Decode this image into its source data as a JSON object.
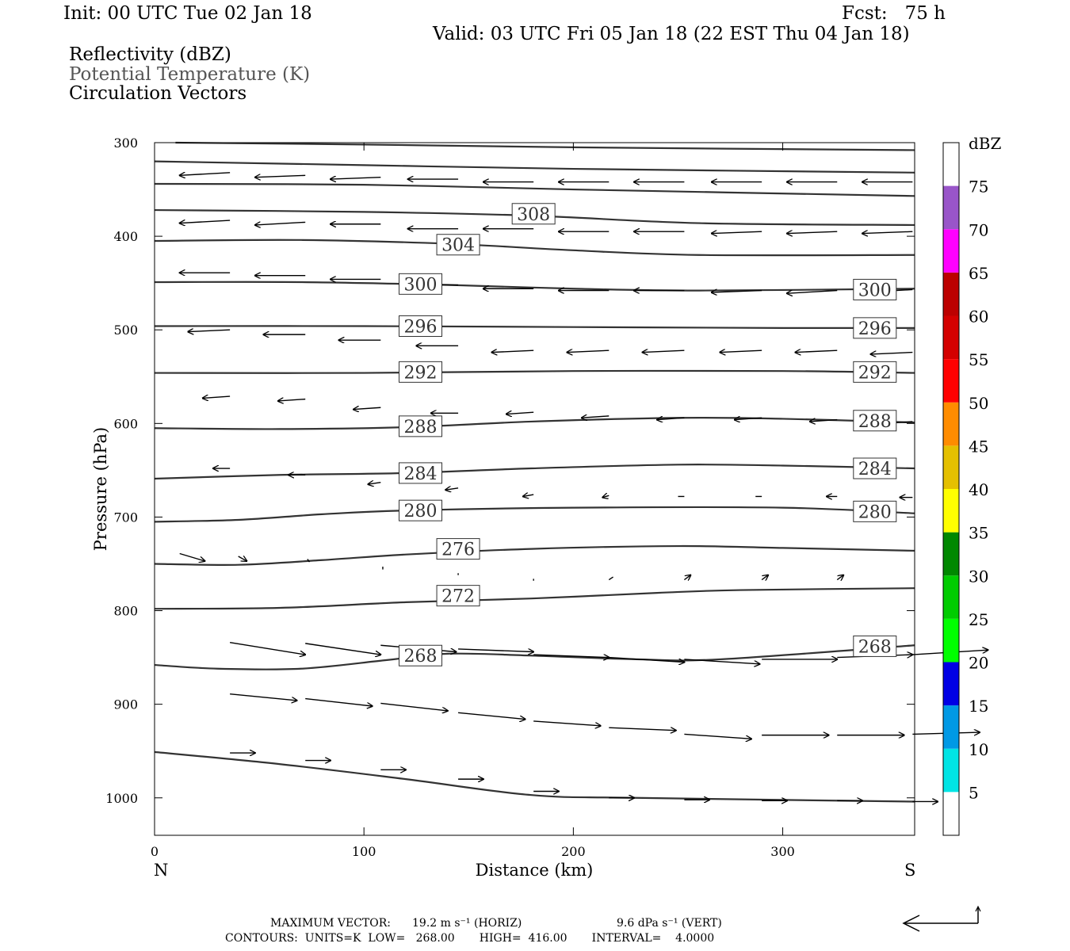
{
  "header": {
    "init": "Init: 00 UTC Tue 02 Jan 18",
    "fcst": "Fcst:   75 h",
    "valid": "Valid: 03 UTC Fri 05 Jan 18 (22 EST Thu 04 Jan 18)",
    "fields": [
      "Reflectivity (dBZ)",
      "Potential Temperature (K)",
      "Circulation Vectors"
    ]
  },
  "chart_data": {
    "type": "cross-section",
    "xlabel": "Distance (km)",
    "ylabel": "Pressure (hPa)",
    "x_ticks": [
      "0",
      "100",
      "200",
      "300"
    ],
    "x_tick_values": [
      0,
      100,
      200,
      300
    ],
    "y_ticks": [
      "300",
      "400",
      "500",
      "600",
      "700",
      "800",
      "900",
      "1000"
    ],
    "y_tick_values": [
      300,
      400,
      500,
      600,
      700,
      800,
      900,
      1000
    ],
    "xlim": [
      0,
      363
    ],
    "ylim": [
      1040,
      300
    ],
    "left_end_label": "N",
    "right_end_label": "S",
    "colorbar": {
      "title": "dBZ",
      "labels": [
        "5",
        "10",
        "15",
        "20",
        "25",
        "30",
        "35",
        "40",
        "45",
        "50",
        "55",
        "60",
        "65",
        "70",
        "75"
      ],
      "colors": [
        "#00e5e5",
        "#0099e5",
        "#0000e5",
        "#00ff00",
        "#00cc00",
        "#008800",
        "#ffff00",
        "#e5c000",
        "#ff8c00",
        "#ff0000",
        "#d40000",
        "#bc0000",
        "#ff00ff",
        "#9955c9"
      ]
    },
    "contours": [
      {
        "label": "",
        "points": [
          [
            10,
            300
          ],
          [
            100,
            302
          ],
          [
            200,
            305
          ],
          [
            363,
            308
          ]
        ]
      },
      {
        "label": "",
        "points": [
          [
            0,
            320
          ],
          [
            100,
            324
          ],
          [
            200,
            328
          ],
          [
            363,
            332
          ]
        ]
      },
      {
        "label": "",
        "points": [
          [
            0,
            344
          ],
          [
            100,
            345
          ],
          [
            200,
            350
          ],
          [
            363,
            357
          ]
        ]
      },
      {
        "label": "308",
        "points": [
          [
            0,
            372
          ],
          [
            100,
            374
          ],
          [
            180,
            378
          ],
          [
            260,
            386
          ],
          [
            363,
            388
          ]
        ]
      },
      {
        "label": "304",
        "points": [
          [
            0,
            405
          ],
          [
            70,
            404
          ],
          [
            140,
            408
          ],
          [
            200,
            415
          ],
          [
            260,
            420
          ],
          [
            363,
            420
          ]
        ]
      },
      {
        "label": "300",
        "points": [
          [
            0,
            449
          ],
          [
            70,
            449
          ],
          [
            140,
            452
          ],
          [
            200,
            456
          ],
          [
            260,
            458
          ],
          [
            363,
            456
          ]
        ]
      },
      {
        "label": "296",
        "points": [
          [
            0,
            496
          ],
          [
            100,
            496
          ],
          [
            200,
            497
          ],
          [
            300,
            498
          ],
          [
            363,
            498
          ]
        ]
      },
      {
        "label": "292",
        "points": [
          [
            0,
            546
          ],
          [
            100,
            546
          ],
          [
            200,
            544
          ],
          [
            300,
            544
          ],
          [
            363,
            546
          ]
        ]
      },
      {
        "label": "288",
        "points": [
          [
            0,
            605
          ],
          [
            60,
            606
          ],
          [
            120,
            604
          ],
          [
            180,
            598
          ],
          [
            250,
            594
          ],
          [
            300,
            595
          ],
          [
            363,
            599
          ]
        ]
      },
      {
        "label": "284",
        "points": [
          [
            0,
            659
          ],
          [
            60,
            655
          ],
          [
            120,
            653
          ],
          [
            180,
            648
          ],
          [
            250,
            644
          ],
          [
            300,
            645
          ],
          [
            363,
            648
          ]
        ]
      },
      {
        "label": "280",
        "points": [
          [
            0,
            705
          ],
          [
            40,
            703
          ],
          [
            80,
            697
          ],
          [
            120,
            693
          ],
          [
            200,
            690
          ],
          [
            300,
            690
          ],
          [
            363,
            696
          ]
        ]
      },
      {
        "label": "276",
        "points": [
          [
            0,
            750
          ],
          [
            40,
            751
          ],
          [
            80,
            746
          ],
          [
            120,
            740
          ],
          [
            180,
            734
          ],
          [
            250,
            731
          ],
          [
            300,
            733
          ],
          [
            363,
            736
          ]
        ]
      },
      {
        "label": "272",
        "points": [
          [
            0,
            798
          ],
          [
            60,
            797
          ],
          [
            120,
            791
          ],
          [
            180,
            787
          ],
          [
            240,
            781
          ],
          [
            280,
            778
          ],
          [
            363,
            776
          ]
        ]
      },
      {
        "label": "268",
        "points": [
          [
            0,
            858
          ],
          [
            30,
            862
          ],
          [
            70,
            862
          ],
          [
            110,
            853
          ],
          [
            140,
            846
          ],
          [
            180,
            848
          ],
          [
            230,
            852
          ],
          [
            270,
            852
          ],
          [
            363,
            837
          ]
        ]
      },
      {
        "label": "",
        "points": [
          [
            0,
            951
          ],
          [
            60,
            964
          ],
          [
            120,
            980
          ],
          [
            180,
            997
          ],
          [
            230,
            1000
          ],
          [
            363,
            1004
          ]
        ]
      }
    ],
    "contour_labels": [
      {
        "text": "308",
        "x": 181,
        "p": 376
      },
      {
        "text": "304",
        "x": 145,
        "p": 409
      },
      {
        "text": "300",
        "x": 127,
        "p": 451
      },
      {
        "text": "300",
        "x": 344,
        "p": 457
      },
      {
        "text": "296",
        "x": 127,
        "p": 496
      },
      {
        "text": "296",
        "x": 344,
        "p": 498
      },
      {
        "text": "292",
        "x": 127,
        "p": 545
      },
      {
        "text": "292",
        "x": 344,
        "p": 545
      },
      {
        "text": "288",
        "x": 127,
        "p": 603
      },
      {
        "text": "288",
        "x": 344,
        "p": 597
      },
      {
        "text": "284",
        "x": 127,
        "p": 653
      },
      {
        "text": "284",
        "x": 344,
        "p": 648
      },
      {
        "text": "280",
        "x": 127,
        "p": 693
      },
      {
        "text": "280",
        "x": 344,
        "p": 694
      },
      {
        "text": "276",
        "x": 145,
        "p": 734
      },
      {
        "text": "272",
        "x": 145,
        "p": 784
      },
      {
        "text": "268",
        "x": 127,
        "p": 848
      },
      {
        "text": "268",
        "x": 344,
        "p": 838
      }
    ],
    "vectors": [
      {
        "x": 36,
        "p": 332,
        "dx": -24,
        "dp": 3
      },
      {
        "x": 72,
        "p": 335,
        "dx": -24,
        "dp": 2
      },
      {
        "x": 108,
        "p": 337,
        "dx": -24,
        "dp": 2
      },
      {
        "x": 145,
        "p": 339,
        "dx": -24,
        "dp": 0
      },
      {
        "x": 181,
        "p": 342,
        "dx": -24,
        "dp": 0
      },
      {
        "x": 217,
        "p": 342,
        "dx": -24,
        "dp": 0
      },
      {
        "x": 253,
        "p": 342,
        "dx": -24,
        "dp": 0
      },
      {
        "x": 290,
        "p": 342,
        "dx": -24,
        "dp": 0
      },
      {
        "x": 326,
        "p": 342,
        "dx": -24,
        "dp": 0
      },
      {
        "x": 362,
        "p": 342,
        "dx": -24,
        "dp": 0
      },
      {
        "x": 36,
        "p": 383,
        "dx": -24,
        "dp": 3
      },
      {
        "x": 72,
        "p": 385,
        "dx": -24,
        "dp": 3
      },
      {
        "x": 108,
        "p": 387,
        "dx": -24,
        "dp": 0
      },
      {
        "x": 145,
        "p": 392,
        "dx": -24,
        "dp": 0
      },
      {
        "x": 181,
        "p": 392,
        "dx": -24,
        "dp": 0
      },
      {
        "x": 217,
        "p": 395,
        "dx": -24,
        "dp": 0
      },
      {
        "x": 253,
        "p": 395,
        "dx": -24,
        "dp": 0
      },
      {
        "x": 290,
        "p": 395,
        "dx": -24,
        "dp": 2
      },
      {
        "x": 326,
        "p": 395,
        "dx": -24,
        "dp": 2
      },
      {
        "x": 362,
        "p": 395,
        "dx": -24,
        "dp": 2
      },
      {
        "x": 36,
        "p": 439,
        "dx": -24,
        "dp": 0
      },
      {
        "x": 72,
        "p": 442,
        "dx": -24,
        "dp": 0
      },
      {
        "x": 108,
        "p": 446,
        "dx": -24,
        "dp": 0
      },
      {
        "x": 145,
        "p": 452,
        "dx": -24,
        "dp": 0
      },
      {
        "x": 181,
        "p": 456,
        "dx": -24,
        "dp": 0
      },
      {
        "x": 217,
        "p": 458,
        "dx": -24,
        "dp": 0
      },
      {
        "x": 253,
        "p": 458,
        "dx": -24,
        "dp": 0
      },
      {
        "x": 290,
        "p": 458,
        "dx": -24,
        "dp": 2
      },
      {
        "x": 326,
        "p": 458,
        "dx": -24,
        "dp": 3
      },
      {
        "x": 362,
        "p": 457,
        "dx": -24,
        "dp": 3
      },
      {
        "x": 36,
        "p": 500,
        "dx": -20,
        "dp": 2
      },
      {
        "x": 72,
        "p": 505,
        "dx": -20,
        "dp": 0
      },
      {
        "x": 108,
        "p": 511,
        "dx": -20,
        "dp": 0
      },
      {
        "x": 145,
        "p": 517,
        "dx": -20,
        "dp": 0
      },
      {
        "x": 181,
        "p": 522,
        "dx": -20,
        "dp": 2
      },
      {
        "x": 217,
        "p": 522,
        "dx": -20,
        "dp": 2
      },
      {
        "x": 253,
        "p": 522,
        "dx": -20,
        "dp": 2
      },
      {
        "x": 290,
        "p": 522,
        "dx": -20,
        "dp": 2
      },
      {
        "x": 326,
        "p": 522,
        "dx": -20,
        "dp": 2
      },
      {
        "x": 362,
        "p": 524,
        "dx": -20,
        "dp": 2
      },
      {
        "x": 36,
        "p": 571,
        "dx": -13,
        "dp": 2
      },
      {
        "x": 72,
        "p": 574,
        "dx": -13,
        "dp": 2
      },
      {
        "x": 108,
        "p": 583,
        "dx": -13,
        "dp": 2
      },
      {
        "x": 145,
        "p": 589,
        "dx": -13,
        "dp": 0
      },
      {
        "x": 181,
        "p": 588,
        "dx": -13,
        "dp": 2
      },
      {
        "x": 217,
        "p": 592,
        "dx": -13,
        "dp": 2
      },
      {
        "x": 253,
        "p": 594,
        "dx": -13,
        "dp": 2
      },
      {
        "x": 290,
        "p": 594,
        "dx": -13,
        "dp": 2
      },
      {
        "x": 326,
        "p": 596,
        "dx": -13,
        "dp": 2
      },
      {
        "x": 362,
        "p": 598,
        "dx": -13,
        "dp": 2
      },
      {
        "x": 36,
        "p": 648,
        "dx": -8,
        "dp": 0
      },
      {
        "x": 72,
        "p": 655,
        "dx": -8,
        "dp": 0
      },
      {
        "x": 108,
        "p": 663,
        "dx": -6,
        "dp": 2
      },
      {
        "x": 145,
        "p": 669,
        "dx": -6,
        "dp": 2
      },
      {
        "x": 181,
        "p": 676,
        "dx": -5,
        "dp": 2
      },
      {
        "x": 217,
        "p": 677,
        "dx": -3,
        "dp": 2
      },
      {
        "x": 253,
        "p": 678,
        "dx": -3,
        "dp": 0
      },
      {
        "x": 290,
        "p": 678,
        "dx": -3,
        "dp": 0
      },
      {
        "x": 326,
        "p": 678,
        "dx": -5,
        "dp": 0
      },
      {
        "x": 362,
        "p": 679,
        "dx": -6,
        "dp": 0
      },
      {
        "x": 12,
        "p": 739,
        "dx": 12,
        "dp": 8
      },
      {
        "x": 40,
        "p": 742,
        "dx": 4,
        "dp": 5
      },
      {
        "x": 73,
        "p": 745,
        "dx": 1,
        "dp": 3
      },
      {
        "x": 109,
        "p": 753,
        "dx": 0,
        "dp": 3
      },
      {
        "x": 145,
        "p": 760,
        "dx": 0,
        "dp": 2
      },
      {
        "x": 181,
        "p": 766,
        "dx": 0,
        "dp": 2
      },
      {
        "x": 217,
        "p": 767,
        "dx": 2,
        "dp": -3
      },
      {
        "x": 253,
        "p": 767,
        "dx": 3,
        "dp": -5
      },
      {
        "x": 290,
        "p": 767,
        "dx": 3,
        "dp": -5
      },
      {
        "x": 326,
        "p": 767,
        "dx": 3,
        "dp": -5
      },
      {
        "x": 36,
        "p": 834,
        "dx": 36,
        "dp": 13
      },
      {
        "x": 72,
        "p": 835,
        "dx": 36,
        "dp": 12
      },
      {
        "x": 108,
        "p": 837,
        "dx": 36,
        "dp": 7
      },
      {
        "x": 145,
        "p": 841,
        "dx": 36,
        "dp": 3
      },
      {
        "x": 181,
        "p": 847,
        "dx": 36,
        "dp": 3
      },
      {
        "x": 217,
        "p": 850,
        "dx": 36,
        "dp": 5
      },
      {
        "x": 253,
        "p": 852,
        "dx": 36,
        "dp": 5
      },
      {
        "x": 290,
        "p": 852,
        "dx": 36,
        "dp": 0
      },
      {
        "x": 326,
        "p": 850,
        "dx": 36,
        "dp": -3
      },
      {
        "x": 362,
        "p": 847,
        "dx": 36,
        "dp": -5
      },
      {
        "x": 36,
        "p": 889,
        "dx": 32,
        "dp": 7
      },
      {
        "x": 72,
        "p": 894,
        "dx": 32,
        "dp": 8
      },
      {
        "x": 108,
        "p": 899,
        "dx": 32,
        "dp": 8
      },
      {
        "x": 145,
        "p": 909,
        "dx": 32,
        "dp": 7
      },
      {
        "x": 181,
        "p": 918,
        "dx": 32,
        "dp": 5
      },
      {
        "x": 217,
        "p": 925,
        "dx": 32,
        "dp": 3
      },
      {
        "x": 253,
        "p": 932,
        "dx": 32,
        "dp": 5
      },
      {
        "x": 290,
        "p": 933,
        "dx": 32,
        "dp": 0
      },
      {
        "x": 326,
        "p": 933,
        "dx": 32,
        "dp": 0
      },
      {
        "x": 362,
        "p": 932,
        "dx": 32,
        "dp": -2
      },
      {
        "x": 36,
        "p": 952,
        "dx": 12,
        "dp": 0
      },
      {
        "x": 72,
        "p": 960,
        "dx": 12,
        "dp": 0
      },
      {
        "x": 108,
        "p": 970,
        "dx": 12,
        "dp": 0
      },
      {
        "x": 145,
        "p": 980,
        "dx": 12,
        "dp": 0
      },
      {
        "x": 181,
        "p": 993,
        "dx": 12,
        "dp": 0
      },
      {
        "x": 217,
        "p": 1000,
        "dx": 12,
        "dp": 0
      },
      {
        "x": 253,
        "p": 1002,
        "dx": 12,
        "dp": 0
      },
      {
        "x": 290,
        "p": 1003,
        "dx": 12,
        "dp": 0
      },
      {
        "x": 326,
        "p": 1003,
        "dx": 12,
        "dp": 0
      },
      {
        "x": 362,
        "p": 1004,
        "dx": 12,
        "dp": 0
      }
    ]
  },
  "footer": {
    "max_vector_label": "MAXIMUM VECTOR:",
    "max_horiz": "19.2 m s⁻¹ (HORIZ)",
    "max_vert": "9.6 dPa s⁻¹ (VERT)",
    "contours_line": "CONTOURS:  UNITS=K  LOW=   268.00       HIGH=  416.00       INTERVAL=    4.0000"
  }
}
